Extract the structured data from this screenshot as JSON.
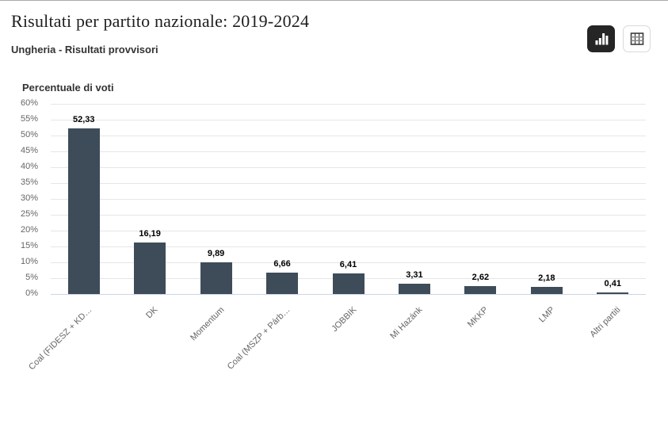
{
  "header": {
    "title": "Risultati per partito nazionale: 2019-2024",
    "subtitle": "Ungheria - Risultati provvisori"
  },
  "toolbar": {
    "active_view": "chart",
    "chart_button_icon": "bar-chart-icon",
    "table_button_icon": "table-grid-icon"
  },
  "chart_data": {
    "type": "bar",
    "title": "Risultati per partito nazionale: 2019-2024",
    "subtitle": "Ungheria - Risultati provvisori",
    "axis_title": "Percentuale di voti",
    "ylabel": "Percentuale di voti",
    "xlabel": "",
    "categories": [
      "Coal (FIDESZ + KD…",
      "DK",
      "Momentum",
      "Coal (MSZP + Párb…",
      "JOBBIK",
      "Mi Hazánk",
      "MKKP",
      "LMP",
      "Altri partiti"
    ],
    "values": [
      52.33,
      16.19,
      9.89,
      6.66,
      6.41,
      3.31,
      2.62,
      2.18,
      0.41
    ],
    "value_labels": [
      "52,33",
      "16,19",
      "9,89",
      "6,66",
      "6,41",
      "3,31",
      "2,62",
      "2,18",
      "0,41"
    ],
    "ylim": [
      0,
      60
    ],
    "ytick_step": 5,
    "ytick_labels": [
      "60%",
      "55%",
      "50%",
      "45%",
      "40%",
      "35%",
      "30%",
      "25%",
      "20%",
      "15%",
      "10%",
      "5%",
      "0%"
    ],
    "grid": true,
    "legend": "none",
    "decimal_separator": ","
  },
  "colors": {
    "bar": "#3e4c59",
    "gridline": "#e6e6e6",
    "axis_line": "#ccd6eb",
    "tick_text": "#666666",
    "active_button_bg": "#252525",
    "title_text": "#1e1e1e"
  }
}
